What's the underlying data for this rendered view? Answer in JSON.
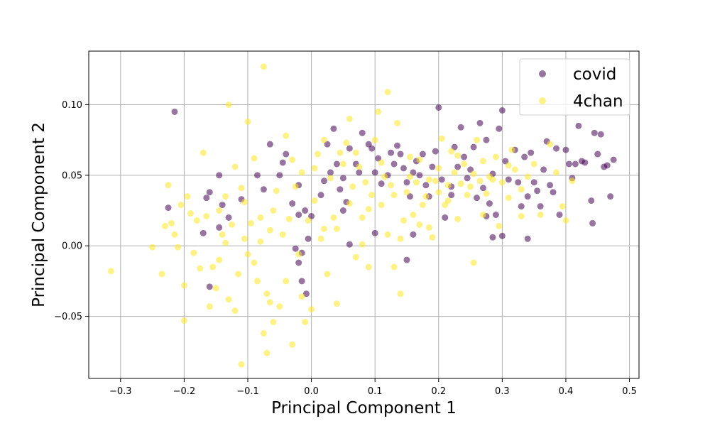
{
  "chart_data": {
    "type": "scatter",
    "title": "",
    "xlabel": "Principal Component 1",
    "ylabel": "Principal Component 2",
    "xlim": [
      -0.35,
      0.515
    ],
    "ylim": [
      -0.094,
      0.138
    ],
    "xticks": [
      -0.3,
      -0.2,
      -0.1,
      0.0,
      0.1,
      0.2,
      0.3,
      0.4,
      0.5
    ],
    "xtick_labels": [
      "−0.3",
      "−0.2",
      "−0.1",
      "0.0",
      "0.1",
      "0.2",
      "0.3",
      "0.4",
      "0.5"
    ],
    "yticks": [
      -0.05,
      0.0,
      0.05,
      0.1
    ],
    "ytick_labels": [
      "−0.05",
      "0.00",
      "0.05",
      "0.10"
    ],
    "grid": true,
    "legend_position": "top-right",
    "series": [
      {
        "name": "covid",
        "color": "#440154",
        "alpha": 0.55,
        "points": [
          [
            -0.215,
            0.095
          ],
          [
            -0.225,
            0.027
          ],
          [
            -0.165,
            0.034
          ],
          [
            -0.16,
            0.038
          ],
          [
            -0.17,
            0.009
          ],
          [
            -0.145,
            0.013
          ],
          [
            -0.13,
            0.02
          ],
          [
            -0.11,
            0.033
          ],
          [
            -0.16,
            -0.029
          ],
          [
            -0.145,
            0.05
          ],
          [
            -0.14,
            0.029
          ],
          [
            -0.085,
            0.05
          ],
          [
            -0.075,
            0.04
          ],
          [
            -0.065,
            0.072
          ],
          [
            -0.045,
            0.059
          ],
          [
            -0.05,
            0.05
          ],
          [
            -0.04,
            0.065
          ],
          [
            -0.03,
            0.03
          ],
          [
            -0.02,
            0.043
          ],
          [
            -0.01,
            0.025
          ],
          [
            -0.02,
            0.022
          ],
          [
            -0.005,
            0.005
          ],
          [
            -0.015,
            -0.005
          ],
          [
            -0.025,
            -0.002
          ],
          [
            -0.02,
            -0.012
          ],
          [
            -0.015,
            -0.025
          ],
          [
            -0.008,
            -0.034
          ],
          [
            0.0,
            0.021
          ],
          [
            0.02,
            0.046
          ],
          [
            0.03,
            0.052
          ],
          [
            0.025,
            0.072
          ],
          [
            0.035,
            0.083
          ],
          [
            0.04,
            0.058
          ],
          [
            0.045,
            0.04
          ],
          [
            0.05,
            0.048
          ],
          [
            0.055,
            0.031
          ],
          [
            0.05,
            0.025
          ],
          [
            0.06,
            0.069
          ],
          [
            0.07,
            0.058
          ],
          [
            0.075,
            0.052
          ],
          [
            0.08,
            0.08
          ],
          [
            0.09,
            0.072
          ],
          [
            0.095,
            0.069
          ],
          [
            0.1,
            0.052
          ],
          [
            0.105,
            0.062
          ],
          [
            0.11,
            0.044
          ],
          [
            0.12,
            0.05
          ],
          [
            0.125,
            0.066
          ],
          [
            0.13,
            0.058
          ],
          [
            0.135,
            0.071
          ],
          [
            0.14,
            0.065
          ],
          [
            0.145,
            0.055
          ],
          [
            0.15,
            0.045
          ],
          [
            0.155,
            0.035
          ],
          [
            0.16,
            0.052
          ],
          [
            0.165,
            0.06
          ],
          [
            0.17,
            0.05
          ],
          [
            0.175,
            0.065
          ],
          [
            0.18,
            0.043
          ],
          [
            0.185,
            0.035
          ],
          [
            0.19,
            0.056
          ],
          [
            0.195,
            0.067
          ],
          [
            0.2,
            0.098
          ],
          [
            0.205,
            0.047
          ],
          [
            0.21,
            0.02
          ],
          [
            0.22,
            0.042
          ],
          [
            0.225,
            0.07
          ],
          [
            0.23,
            0.056
          ],
          [
            0.235,
            0.084
          ],
          [
            0.24,
            0.063
          ],
          [
            0.245,
            0.048
          ],
          [
            0.25,
            0.054
          ],
          [
            0.255,
            0.07
          ],
          [
            0.26,
            0.034
          ],
          [
            0.265,
            0.087
          ],
          [
            0.27,
            0.041
          ],
          [
            0.275,
            0.075
          ],
          [
            0.28,
            0.03
          ],
          [
            0.285,
            0.051
          ],
          [
            0.29,
            0.022
          ],
          [
            0.295,
            0.083
          ],
          [
            0.3,
            0.096
          ],
          [
            0.305,
            0.06
          ],
          [
            0.31,
            0.047
          ],
          [
            0.32,
            0.068
          ],
          [
            0.325,
            0.045
          ],
          [
            0.33,
            0.028
          ],
          [
            0.335,
            0.063
          ],
          [
            0.34,
            0.035
          ],
          [
            0.345,
            0.066
          ],
          [
            0.35,
            0.045
          ],
          [
            0.355,
            0.039
          ],
          [
            0.36,
            0.028
          ],
          [
            0.365,
            0.054
          ],
          [
            0.37,
            0.074
          ],
          [
            0.375,
            0.043
          ],
          [
            0.38,
            0.038
          ],
          [
            0.385,
            0.069
          ],
          [
            0.39,
            0.022
          ],
          [
            0.4,
            0.068
          ],
          [
            0.405,
            0.058
          ],
          [
            0.41,
            0.048
          ],
          [
            0.415,
            0.058
          ],
          [
            0.42,
            0.085
          ],
          [
            0.425,
            0.06
          ],
          [
            0.43,
            0.059
          ],
          [
            0.44,
            0.032
          ],
          [
            0.442,
            0.016
          ],
          [
            0.445,
            0.08
          ],
          [
            0.45,
            0.065
          ],
          [
            0.455,
            0.079
          ],
          [
            0.46,
            0.056
          ],
          [
            0.465,
            0.057
          ],
          [
            0.47,
            0.035
          ],
          [
            0.475,
            0.061
          ],
          [
            0.3,
            0.007
          ],
          [
            0.285,
            0.006
          ],
          [
            0.34,
            0.005
          ],
          [
            0.16,
            0.008
          ],
          [
            0.15,
            -0.01
          ],
          [
            0.06,
            0.001
          ],
          [
            0.275,
            0.021
          ],
          [
            0.22,
            0.036
          ],
          [
            0.1,
            0.009
          ],
          [
            0.015,
            0.036
          ]
        ]
      },
      {
        "name": "4chan",
        "color": "#fde725",
        "alpha": 0.55,
        "points": [
          [
            -0.315,
            -0.018
          ],
          [
            -0.25,
            -0.001
          ],
          [
            -0.235,
            -0.02
          ],
          [
            -0.23,
            0.014
          ],
          [
            -0.225,
            0.043
          ],
          [
            -0.22,
            0.016
          ],
          [
            -0.215,
            0.008
          ],
          [
            -0.21,
            -0.001
          ],
          [
            -0.205,
            0.029
          ],
          [
            -0.2,
            -0.028
          ],
          [
            -0.2,
            -0.053
          ],
          [
            -0.195,
            0.035
          ],
          [
            -0.19,
            0.023
          ],
          [
            -0.185,
            -0.005
          ],
          [
            -0.18,
            0.018
          ],
          [
            -0.175,
            -0.016
          ],
          [
            -0.17,
            0.066
          ],
          [
            -0.165,
            0.021
          ],
          [
            -0.16,
            -0.043
          ],
          [
            -0.155,
            -0.015
          ],
          [
            -0.15,
            -0.03
          ],
          [
            -0.145,
            -0.01
          ],
          [
            -0.14,
            0.008
          ],
          [
            -0.135,
            0.035
          ],
          [
            -0.13,
            -0.038
          ],
          [
            -0.125,
            0.015
          ],
          [
            -0.12,
            0.056
          ],
          [
            -0.115,
            -0.02
          ],
          [
            -0.11,
            0.041
          ],
          [
            -0.105,
            0.005
          ],
          [
            -0.1,
            -0.006
          ],
          [
            -0.1,
            0.088
          ],
          [
            -0.095,
            0.016
          ],
          [
            -0.09,
            0.062
          ],
          [
            -0.085,
            -0.025
          ],
          [
            -0.08,
            0.02
          ],
          [
            -0.075,
            0.127
          ],
          [
            -0.075,
            -0.062
          ],
          [
            -0.07,
            -0.034
          ],
          [
            -0.065,
            0.011
          ],
          [
            -0.06,
            -0.054
          ],
          [
            -0.055,
            0.039
          ],
          [
            -0.05,
            -0.043
          ],
          [
            -0.045,
            0.008
          ],
          [
            -0.04,
            0.078
          ],
          [
            -0.035,
            0.019
          ],
          [
            -0.03,
            -0.07
          ],
          [
            -0.025,
            0.042
          ],
          [
            -0.02,
            -0.006
          ],
          [
            -0.015,
            0.052
          ],
          [
            -0.01,
            -0.054
          ],
          [
            -0.005,
            0.018
          ],
          [
            0.0,
            -0.045
          ],
          [
            0.005,
            0.032
          ],
          [
            0.01,
            0.065
          ],
          [
            0.015,
            0.005
          ],
          [
            0.02,
            0.012
          ],
          [
            0.025,
            -0.02
          ],
          [
            0.03,
            0.048
          ],
          [
            0.035,
            0.02
          ],
          [
            0.04,
            -0.041
          ],
          [
            0.045,
            0.066
          ],
          [
            0.05,
            0.058
          ],
          [
            0.055,
            0.073
          ],
          [
            0.06,
            0.09
          ],
          [
            0.065,
            0.042
          ],
          [
            0.07,
            -0.008
          ],
          [
            0.075,
            0.056
          ],
          [
            0.08,
            0.02
          ],
          [
            0.085,
            0.045
          ],
          [
            0.09,
            -0.015
          ],
          [
            0.095,
            0.036
          ],
          [
            0.1,
            0.075
          ],
          [
            0.105,
            0.095
          ],
          [
            0.11,
            0.029
          ],
          [
            0.115,
            0.049
          ],
          [
            0.12,
            0.109
          ],
          [
            0.125,
            0.043
          ],
          [
            0.13,
            -0.015
          ],
          [
            0.135,
            0.087
          ],
          [
            0.14,
            -0.034
          ],
          [
            0.145,
            0.018
          ],
          [
            0.15,
            0.038
          ],
          [
            0.155,
            0.063
          ],
          [
            0.16,
            0.022
          ],
          [
            0.165,
            0.045
          ],
          [
            0.17,
            0.061
          ],
          [
            0.175,
            0.029
          ],
          [
            0.18,
            0.035
          ],
          [
            0.185,
            0.013
          ],
          [
            0.19,
            0.006
          ],
          [
            0.195,
            0.046
          ],
          [
            0.2,
            0.038
          ],
          [
            0.205,
            0.076
          ],
          [
            0.21,
            0.029
          ],
          [
            0.215,
            0.043
          ],
          [
            0.22,
            0.067
          ],
          [
            0.225,
            0.052
          ],
          [
            0.23,
            0.019
          ],
          [
            0.235,
            0.044
          ],
          [
            0.24,
            0.058
          ],
          [
            0.245,
            0.036
          ],
          [
            0.25,
            0.042
          ],
          [
            0.255,
            -0.012
          ],
          [
            0.26,
            0.075
          ],
          [
            0.265,
            0.046
          ],
          [
            0.27,
            0.06
          ],
          [
            0.275,
            0.037
          ],
          [
            0.28,
            0.049
          ],
          [
            0.29,
            0.063
          ],
          [
            0.295,
            0.014
          ],
          [
            0.3,
            0.045
          ],
          [
            0.31,
            0.034
          ],
          [
            0.315,
            0.068
          ],
          [
            0.32,
            0.054
          ],
          [
            0.33,
            0.021
          ],
          [
            0.34,
            0.049
          ],
          [
            0.35,
            0.058
          ],
          [
            0.36,
            0.022
          ],
          [
            0.375,
            0.072
          ],
          [
            0.385,
            0.052
          ],
          [
            0.395,
            0.028
          ],
          [
            0.4,
            0.018
          ],
          [
            0.41,
            0.046
          ],
          [
            -0.13,
            0.1
          ],
          [
            -0.11,
            -0.084
          ],
          [
            -0.07,
            -0.076
          ],
          [
            -0.06,
            0.025
          ],
          [
            -0.08,
            0.003
          ],
          [
            -0.09,
            -0.012
          ],
          [
            -0.12,
            -0.046
          ],
          [
            -0.135,
            0.002
          ],
          [
            -0.145,
            0.025
          ],
          [
            -0.105,
            0.031
          ],
          [
            -0.065,
            -0.04
          ],
          [
            -0.04,
            -0.025
          ],
          [
            -0.03,
            0.061
          ],
          [
            -0.015,
            -0.036
          ],
          [
            0.005,
            0.055
          ],
          [
            0.02,
            0.075
          ],
          [
            0.04,
            0.012
          ],
          [
            0.06,
            0.03
          ],
          [
            0.07,
            0.066
          ],
          [
            0.08,
            0.001
          ],
          [
            0.09,
            0.026
          ],
          [
            0.11,
            0.059
          ],
          [
            0.12,
            0.008
          ],
          [
            0.13,
            0.036
          ],
          [
            0.14,
            0.005
          ],
          [
            0.155,
            0.049
          ],
          [
            0.17,
            0.015
          ],
          [
            0.185,
            0.047
          ],
          [
            0.2,
            0.055
          ],
          [
            0.215,
            0.032
          ],
          [
            0.23,
            0.064
          ],
          [
            0.255,
            0.051
          ],
          [
            0.27,
            0.022
          ],
          [
            0.285,
            0.047
          ],
          [
            0.31,
            0.057
          ],
          [
            0.33,
            0.04
          ]
        ]
      }
    ]
  }
}
